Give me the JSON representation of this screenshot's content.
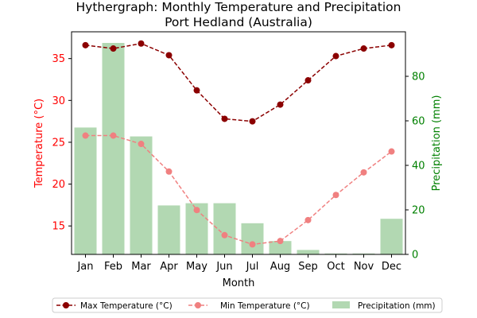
{
  "chart_data": {
    "type": "combo-line-bar",
    "title_line1": "Hythergraph: Monthly Temperature and Precipitation",
    "title_line2": "Port Hedland (Australia)",
    "xlabel": "Month",
    "ylabel_left": "Temperature (°C)",
    "ylabel_right": "Precipitation (mm)",
    "categories": [
      "Jan",
      "Feb",
      "Mar",
      "Apr",
      "May",
      "Jun",
      "Jul",
      "Aug",
      "Sep",
      "Oct",
      "Nov",
      "Dec"
    ],
    "ylim_left": [
      11.6,
      38.2
    ],
    "yticks_left": [
      15,
      20,
      25,
      30,
      35
    ],
    "ylim_right": [
      0,
      100
    ],
    "yticks_right": [
      0,
      20,
      40,
      60,
      80
    ],
    "series": [
      {
        "name": "Max Temperature (°C)",
        "axis": "left",
        "kind": "line",
        "color": "#8b0000",
        "values": [
          36.6,
          36.2,
          36.8,
          35.4,
          31.2,
          27.8,
          27.5,
          29.5,
          32.4,
          35.3,
          36.2,
          36.6
        ]
      },
      {
        "name": "Min Temperature (°C)",
        "axis": "left",
        "kind": "line",
        "color": "#f08080",
        "values": [
          25.8,
          25.8,
          24.8,
          21.5,
          16.9,
          13.9,
          12.8,
          13.2,
          15.7,
          18.7,
          21.4,
          23.9
        ]
      },
      {
        "name": "Precipitation (mm)",
        "axis": "right",
        "kind": "bar",
        "color": "#b2d8b2",
        "values": [
          57,
          95,
          53,
          22,
          23,
          23,
          14,
          6,
          2,
          0.4,
          0.4,
          16
        ]
      }
    ],
    "legend_position": "bottom-center"
  },
  "colors": {
    "left_axis": "#ff0000",
    "right_axis": "#008000",
    "max_line": "#8b0000",
    "min_line": "#f08080",
    "bars": "#b2d8b2"
  }
}
